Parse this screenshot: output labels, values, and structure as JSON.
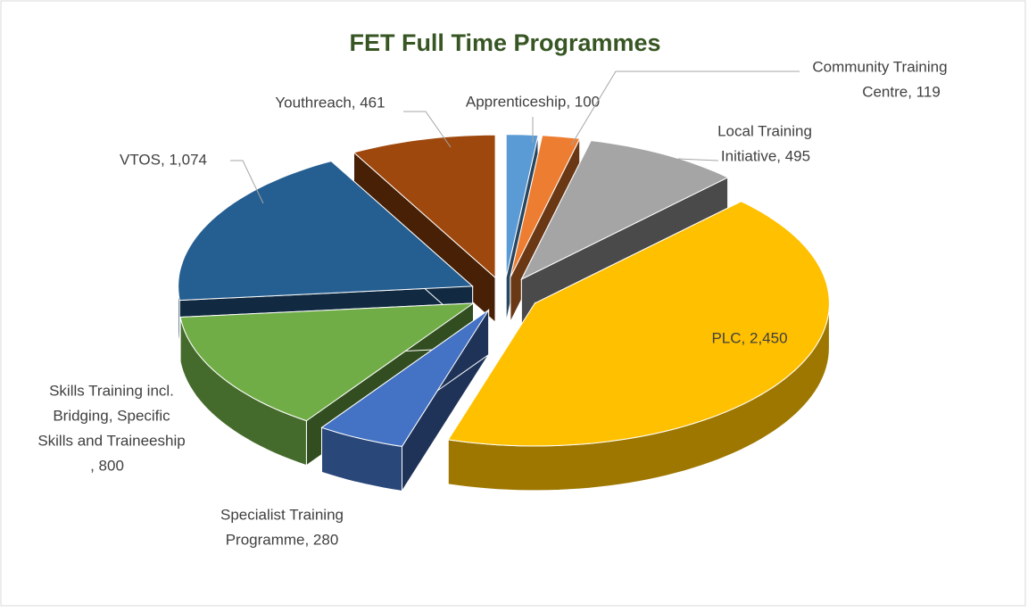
{
  "chart_data": {
    "type": "pie3d",
    "title": "FET Full Time Programmes",
    "values": [
      100,
      119,
      495,
      2450,
      280,
      800,
      1074,
      461
    ],
    "value_labels": [
      [
        "Apprenticeship, 100"
      ],
      [
        "Community Training",
        "Centre, 119"
      ],
      [
        "Local Training",
        "Initiative, 495"
      ],
      [
        "PLC, 2,450"
      ],
      [
        "Specialist Training",
        "Programme, 280"
      ],
      [
        "Skills Training incl.",
        "Bridging, Specific",
        "Skills and Traineeship",
        ", 800"
      ],
      [
        "VTOS, 1,074"
      ],
      [
        "Youthreach, 461"
      ]
    ],
    "colors": [
      "#5b9bd5",
      "#ed7d31",
      "#a5a5a5",
      "#ffc000",
      "#4472c4",
      "#70ad47",
      "#255e91",
      "#9e480e"
    ],
    "exploded": true
  }
}
